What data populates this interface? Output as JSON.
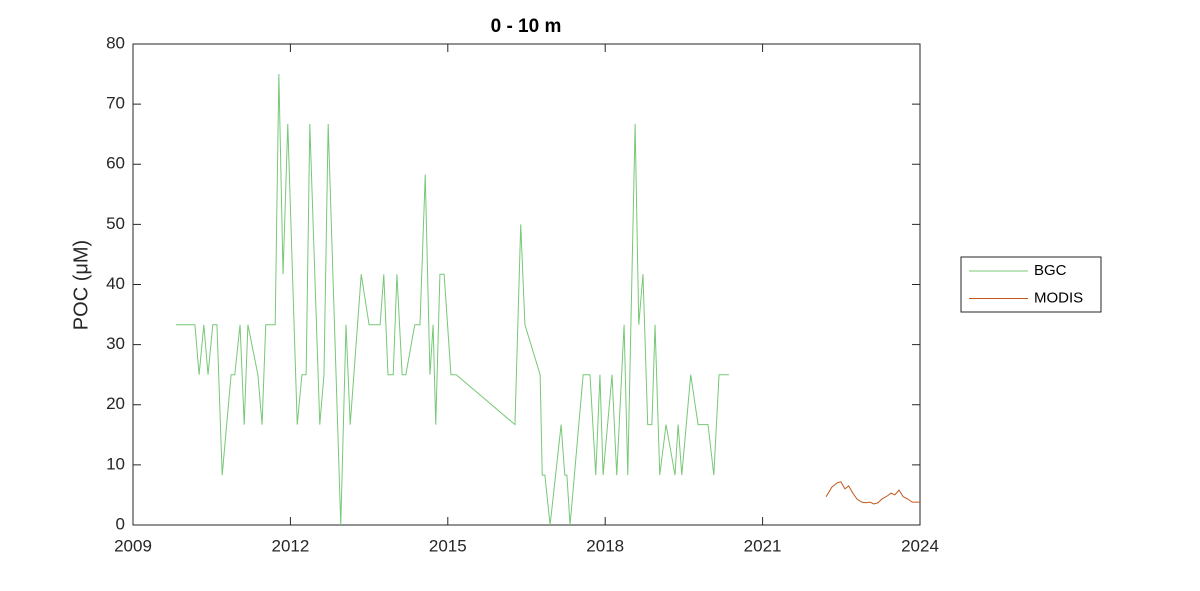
{
  "chart_data": {
    "type": "line",
    "title": "0 - 10 m",
    "y_label": "POC (μM)",
    "xlim": [
      2009,
      2024
    ],
    "xticks": [
      2009,
      2012,
      2015,
      2018,
      2021,
      2024
    ],
    "ylim": [
      0,
      80
    ],
    "yticks": [
      0,
      10,
      20,
      30,
      40,
      50,
      60,
      70,
      80
    ],
    "grid": false,
    "legend": "right",
    "series": [
      {
        "name": "BGC",
        "color": "#77c877",
        "x": [
          2009.82,
          2010.18,
          2010.26,
          2010.35,
          2010.43,
          2010.52,
          2010.6,
          2010.7,
          2010.87,
          2010.94,
          2011.04,
          2011.12,
          2011.19,
          2011.38,
          2011.46,
          2011.53,
          2011.71,
          2011.78,
          2011.86,
          2011.95,
          2012.13,
          2012.22,
          2012.3,
          2012.37,
          2012.56,
          2012.64,
          2012.72,
          2012.81,
          2012.96,
          2013.06,
          2013.14,
          2013.35,
          2013.5,
          2013.71,
          2013.78,
          2013.86,
          2013.96,
          2014.03,
          2014.13,
          2014.2,
          2014.37,
          2014.47,
          2014.57,
          2014.66,
          2014.72,
          2014.77,
          2014.85,
          2014.93,
          2015.06,
          2015.16,
          2016.28,
          2016.39,
          2016.47,
          2016.76,
          2016.8,
          2016.85,
          2016.95,
          2017.16,
          2017.23,
          2017.27,
          2017.33,
          2017.58,
          2017.71,
          2017.82,
          2017.9,
          2017.96,
          2018.13,
          2018.22,
          2018.36,
          2018.43,
          2018.57,
          2018.64,
          2018.72,
          2018.81,
          2018.89,
          2018.95,
          2019.04,
          2019.16,
          2019.33,
          2019.39,
          2019.46,
          2019.63,
          2019.77,
          2019.96,
          2020.07,
          2020.17,
          2020.36
        ],
        "values": [
          33.3,
          33.3,
          25,
          33.3,
          25,
          33.3,
          33.3,
          8.3,
          25,
          25,
          33.3,
          16.7,
          33.3,
          25,
          16.7,
          33.3,
          33.3,
          75,
          41.7,
          66.7,
          16.7,
          25,
          25,
          66.7,
          16.7,
          25,
          66.7,
          41.7,
          0,
          33.3,
          16.7,
          41.7,
          33.3,
          33.3,
          41.7,
          25,
          25,
          41.7,
          25,
          25,
          33.3,
          33.3,
          58.3,
          25,
          33.3,
          16.7,
          41.7,
          41.7,
          25,
          25,
          16.7,
          50,
          33.3,
          25,
          8.3,
          8.3,
          0,
          16.7,
          8.3,
          8.3,
          0,
          25,
          25,
          8.3,
          25,
          8.3,
          25,
          8.3,
          33.3,
          8.3,
          66.7,
          33.3,
          41.7,
          16.7,
          16.7,
          33.3,
          8.3,
          16.7,
          8.3,
          16.7,
          8.3,
          25,
          16.7,
          16.7,
          8.3,
          25,
          25
        ]
      },
      {
        "name": "MODIS",
        "color": "#c0581a",
        "x": [
          2022.21,
          2022.32,
          2022.42,
          2022.49,
          2022.57,
          2022.64,
          2022.72,
          2022.8,
          2022.89,
          2022.97,
          2023.05,
          2023.12,
          2023.2,
          2023.27,
          2023.37,
          2023.45,
          2023.52,
          2023.6,
          2023.68,
          2023.77,
          2023.85,
          2024.0
        ],
        "values": [
          4.7,
          6.3,
          7,
          7.2,
          6,
          6.5,
          5.3,
          4.3,
          3.8,
          3.7,
          3.8,
          3.5,
          3.7,
          4.3,
          4.8,
          5.3,
          5,
          5.8,
          4.7,
          4.3,
          3.8,
          3.8
        ]
      }
    ]
  }
}
